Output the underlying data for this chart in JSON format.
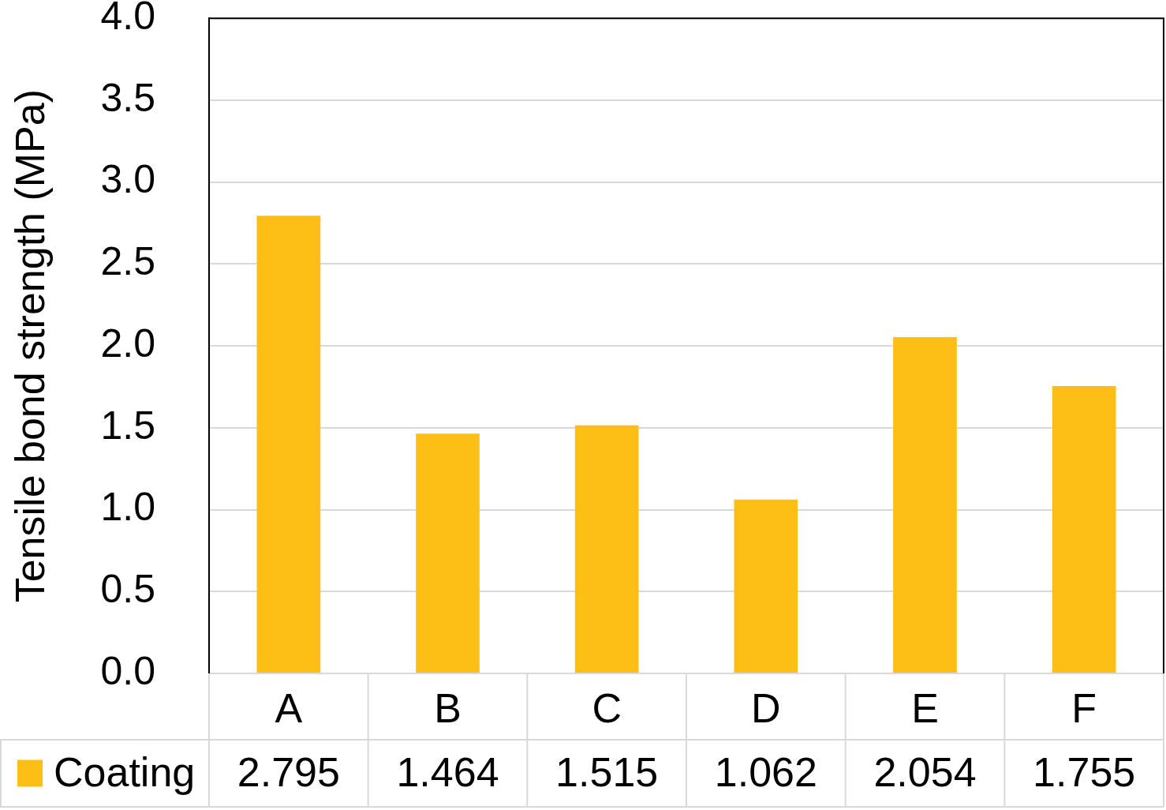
{
  "chart_data": {
    "type": "bar",
    "ylabel": "Tensile bond strength (MPa)",
    "categories": [
      "A",
      "B",
      "C",
      "D",
      "E",
      "F"
    ],
    "series": [
      {
        "name": "Coating",
        "color": "#fdbf15",
        "values": [
          2.795,
          1.464,
          1.515,
          1.062,
          2.054,
          1.755
        ]
      }
    ],
    "ylim": [
      0,
      4
    ],
    "yticks": [
      {
        "value": 0,
        "label": "0.0"
      },
      0.5,
      {
        "value": 1,
        "label": "1.0"
      },
      1.5,
      {
        "value": 2,
        "label": "2.0"
      },
      2.5,
      {
        "value": 3,
        "label": "3.0"
      },
      3.5,
      {
        "value": 4,
        "label": "4.0"
      }
    ],
    "grid": "y",
    "legend": "bottom",
    "data_labels": true
  }
}
